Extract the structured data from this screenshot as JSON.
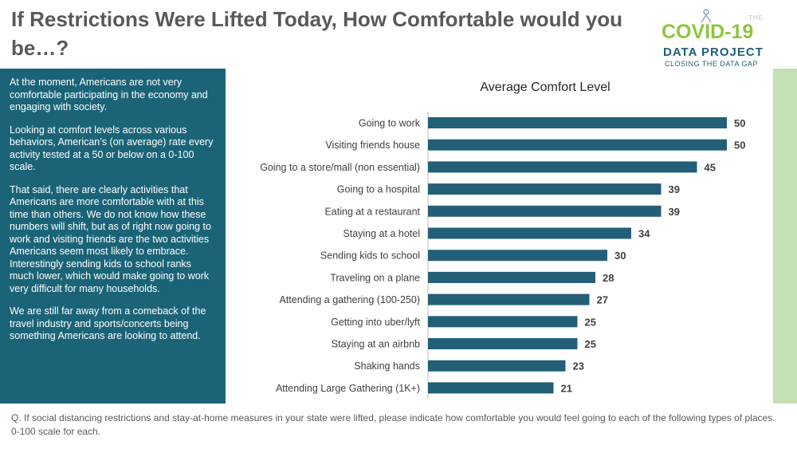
{
  "header": {
    "title": "If Restrictions Were Lifted Today, How Comfortable would you be…?"
  },
  "logo": {
    "the": "THE",
    "name": "COVID-19",
    "line2": "DATA PROJECT",
    "tagline": "CLOSING THE DATA GAP"
  },
  "sidebar": {
    "paragraphs": [
      "At the moment, Americans are not very comfortable participating in the economy and engaging with society.",
      "Looking at comfort levels across various behaviors, American’s (on average) rate every activity tested at a 50 or below on a 0-100 scale.",
      "That said, there are clearly activities that Americans are more comfortable with at this time than others. We do not know how these numbers will shift, but as of right now going to work and visiting friends are the two activities Americans seem most likely to embrace. Interestingly sending kids to school ranks much lower, which would make going to work very difficult for many households.",
      "We are still far away from a comeback of the travel industry and sports/concerts being something Americans are looking to attend."
    ]
  },
  "chart_data": {
    "type": "bar",
    "orientation": "horizontal",
    "title": "Average Comfort Level",
    "categories": [
      "Going to work",
      "Visiting friends house",
      "Going to a store/mall (non essential)",
      "Going to a hospital",
      "Eating at a restaurant",
      "Staying at a hotel",
      "Sending kids to school",
      "Traveling on a plane",
      "Attending a gathering (100-250)",
      "Getting into uber/lyft",
      "Staying at an airbnb",
      "Shaking hands",
      "Attending Large Gathering (1K+)"
    ],
    "values": [
      50,
      50,
      45,
      39,
      39,
      34,
      30,
      28,
      27,
      25,
      25,
      23,
      21
    ],
    "data_labels": [
      "50",
      "50",
      "45",
      "39",
      "39",
      "34",
      "30",
      "28",
      "27",
      "25",
      "25",
      "23",
      "21"
    ],
    "xlim": [
      0,
      100
    ],
    "bar_color": "#245f78"
  },
  "footnote": "Q. If social distancing restrictions and stay-at-home measures in your state were lifted, please indicate how comfortable you would feel going to each of the following types of places. 0-100 scale for each."
}
